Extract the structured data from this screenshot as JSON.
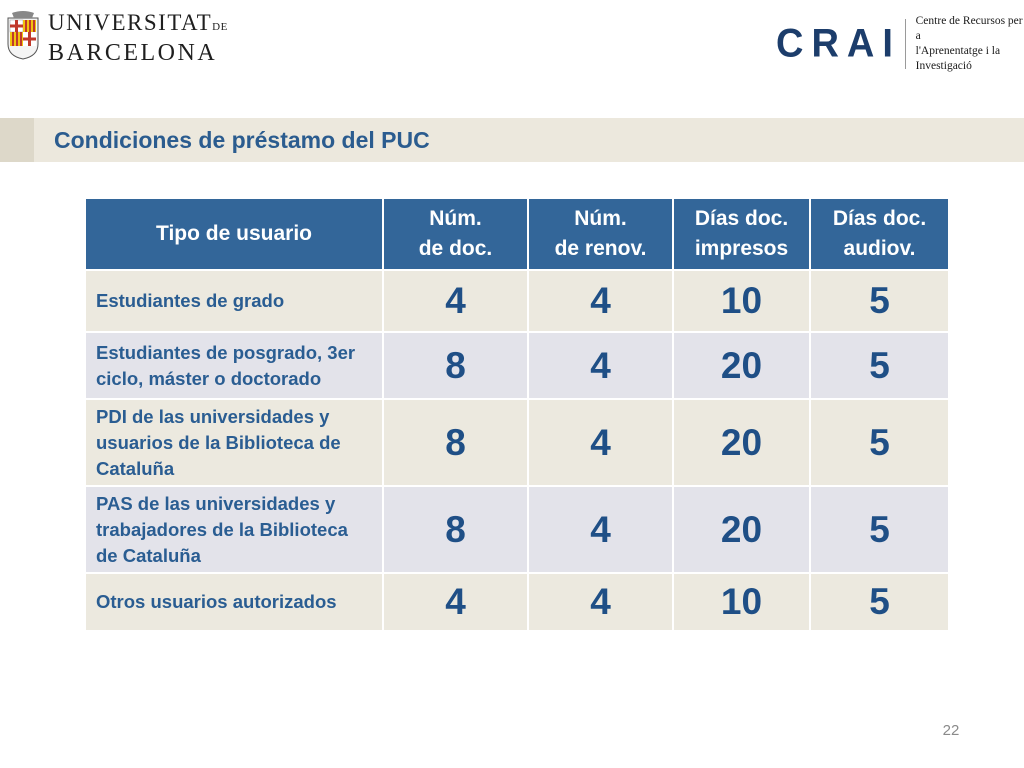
{
  "header": {
    "ub": {
      "line1": "UNIVERSITAT",
      "line1_suffix": "DE",
      "line2": "BARCELONA"
    },
    "crai": {
      "wordmark": "CRAI",
      "line1": "Centre de Recursos per a",
      "line2": "l'Aprenentatge i la Investigació"
    }
  },
  "title": "Condiciones de préstamo del PUC",
  "table": {
    "headers": [
      [
        "Tipo de usuario"
      ],
      [
        "Núm.",
        "de doc."
      ],
      [
        "Núm.",
        "de renov."
      ],
      [
        "Días doc.",
        "impresos"
      ],
      [
        "Días doc.",
        "audiov."
      ]
    ],
    "rows": [
      {
        "label": [
          "Estudiantes de grado"
        ],
        "values": [
          "4",
          "4",
          "10",
          "5"
        ]
      },
      {
        "label": [
          "Estudiantes de posgrado, 3er",
          "ciclo, máster o doctorado"
        ],
        "values": [
          "8",
          "4",
          "20",
          "5"
        ]
      },
      {
        "label": [
          "PDI de las universidades y",
          "usuarios de la Biblioteca de",
          "Cataluña"
        ],
        "values": [
          "8",
          "4",
          "20",
          "5"
        ]
      },
      {
        "label": [
          "PAS de las universidades y",
          "trabajadores de la Biblioteca",
          "de Cataluña"
        ],
        "values": [
          "8",
          "4",
          "20",
          "5"
        ]
      },
      {
        "label": [
          "Otros usuarios autorizados"
        ],
        "values": [
          "4",
          "4",
          "10",
          "5"
        ]
      }
    ]
  },
  "page_number": "22",
  "colors": {
    "header_bg": "#336699",
    "label_text": "#2a5d92",
    "value_text": "#1f4f86",
    "row_odd_bg": "#ece9df",
    "row_even_bg": "#e3e3ea",
    "title_text": "#2b5c8f"
  }
}
